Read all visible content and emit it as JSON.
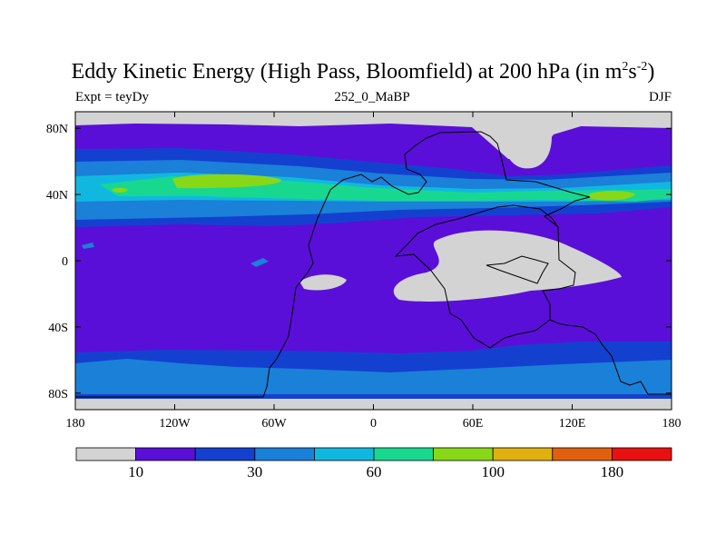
{
  "title": {
    "main": "Eddy Kinetic Energy (High Pass, Bloomfield) at 200 hPa (in m",
    "sup1": "2",
    "mid": "s",
    "sup2": "-2",
    "end": ")"
  },
  "subtitle_left": "Expt = teyDy",
  "subtitle_center": "252_0_MaBP",
  "subtitle_right": "DJF",
  "colors": [
    "#d3d3d3",
    "#5a0fd8",
    "#1440d0",
    "#1a80d8",
    "#10b8e0",
    "#18d890",
    "#88d818",
    "#e0b010",
    "#e06010",
    "#e81010"
  ],
  "chart_data": {
    "type": "heatmap",
    "title": "Eddy Kinetic Energy (High Pass, Bloomfield) at 200 hPa (in m^2 s^-2)",
    "experiment": "Expt = teyDy",
    "run": "252_0_MaBP",
    "season": "DJF",
    "xrange": [
      -180,
      180
    ],
    "yrange": [
      -90,
      90
    ],
    "x_ticks": [
      {
        "v": -180,
        "t": "180"
      },
      {
        "v": -120,
        "t": "120W"
      },
      {
        "v": -60,
        "t": "60W"
      },
      {
        "v": 0,
        "t": "0"
      },
      {
        "v": 60,
        "t": "60E"
      },
      {
        "v": 120,
        "t": "120E"
      },
      {
        "v": 180,
        "t": "180"
      }
    ],
    "y_ticks": [
      {
        "v": 80,
        "t": "80N"
      },
      {
        "v": 40,
        "t": "40N"
      },
      {
        "v": 0,
        "t": "0"
      },
      {
        "v": -40,
        "t": "40S"
      },
      {
        "v": -80,
        "t": "80S"
      }
    ],
    "colorbar": {
      "labels": [
        {
          "i": 1,
          "t": "10"
        },
        {
          "i": 3,
          "t": "30"
        },
        {
          "i": 5,
          "t": "60"
        },
        {
          "i": 7,
          "t": "100"
        },
        {
          "i": 9,
          "t": "180"
        }
      ]
    }
  }
}
